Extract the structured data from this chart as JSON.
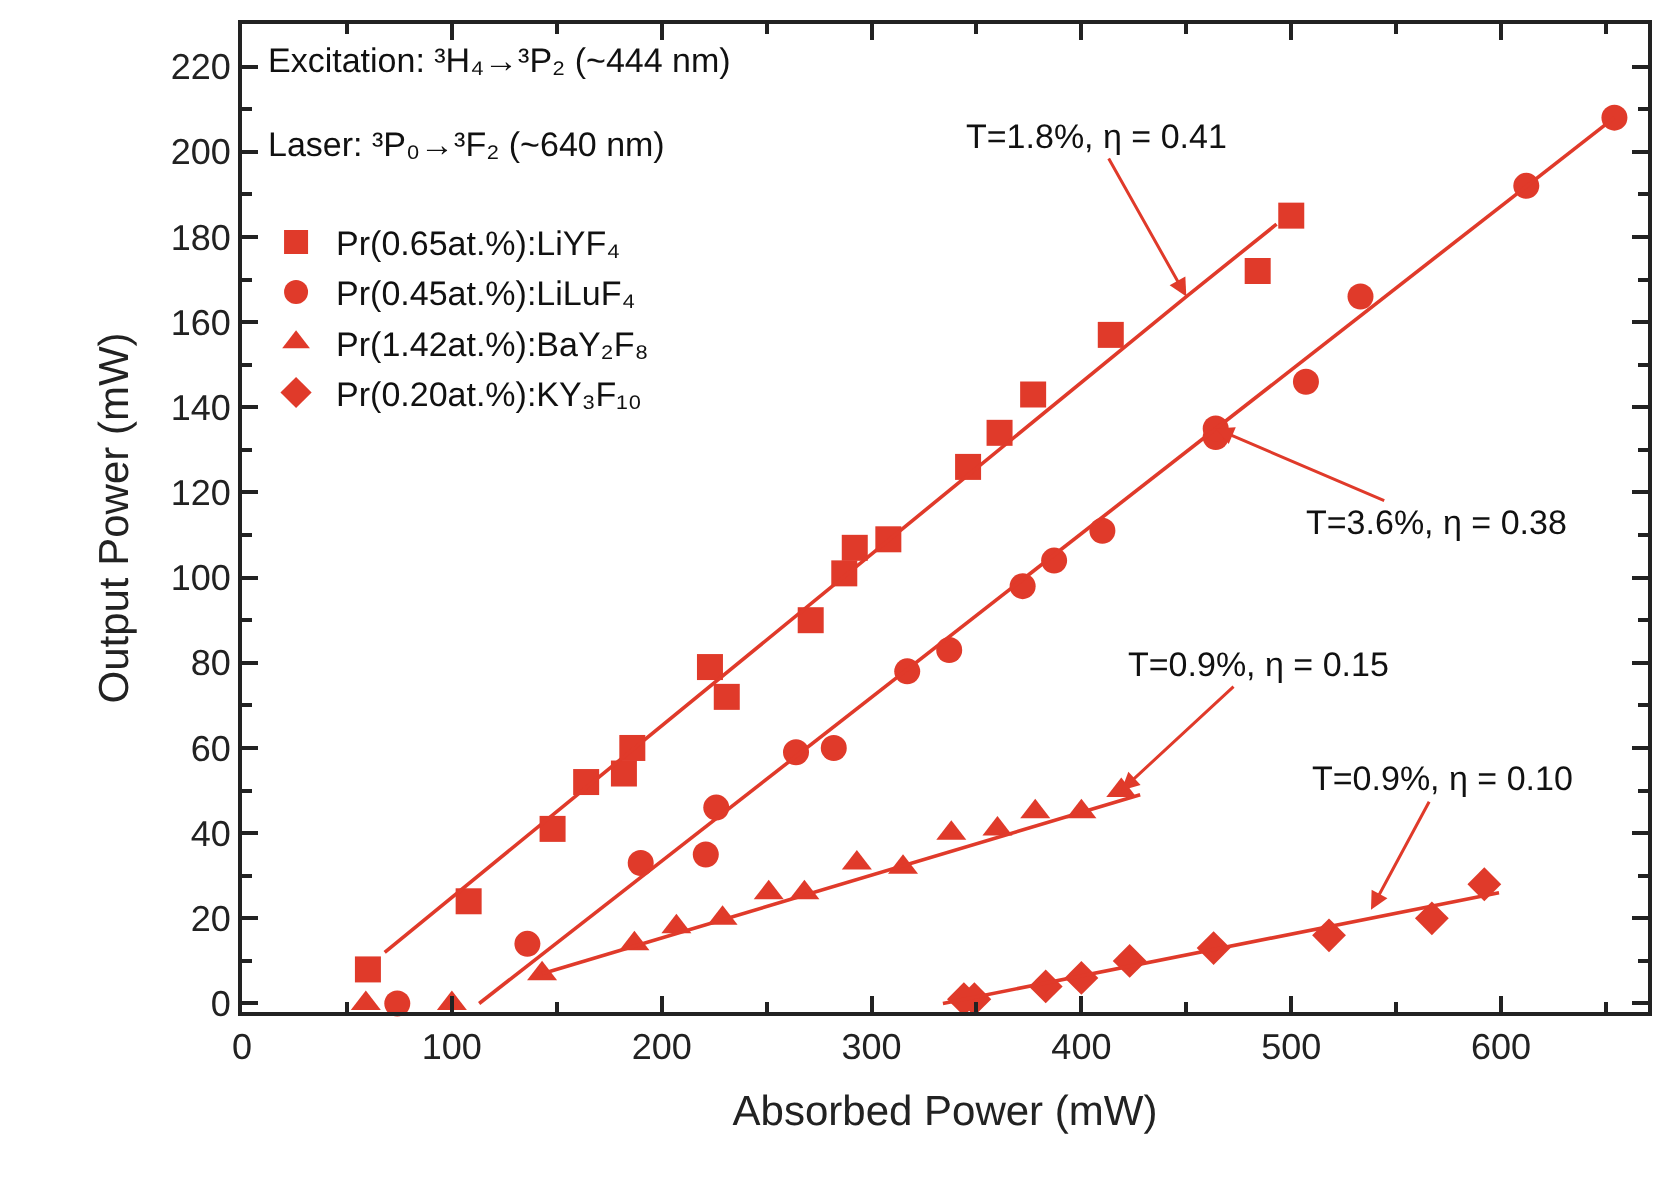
{
  "chart_data": {
    "type": "scatter",
    "xlabel": "Absorbed Power (mW)",
    "ylabel": "Output Power (mW)",
    "xlim": [
      0,
      670
    ],
    "ylim": [
      -2,
      230
    ],
    "xticks": [
      0,
      100,
      200,
      300,
      400,
      500,
      600
    ],
    "yticks": [
      0,
      20,
      40,
      60,
      80,
      100,
      120,
      140,
      160,
      180,
      200,
      220
    ],
    "legend": "top left",
    "series": [
      {
        "name": "Pr(0.65at.%):LiYF₄",
        "color": "#e03a2a",
        "marker": "square",
        "x": [
          60,
          108,
          148,
          164,
          182,
          186,
          223,
          231,
          271,
          287,
          292,
          308,
          346,
          361,
          377,
          414,
          484,
          500
        ],
        "values": [
          8,
          24,
          41,
          52,
          54,
          60,
          79,
          72,
          90,
          101,
          107,
          109,
          126,
          134,
          143,
          157,
          172,
          185
        ]
      },
      {
        "name": "Pr(0.45at.%):LiLuF₄",
        "color": "#e03a2a",
        "marker": "circle",
        "x": [
          74,
          136,
          190,
          221,
          226,
          264,
          282,
          317,
          337,
          372,
          387,
          410,
          464,
          464,
          507,
          533,
          612,
          654
        ],
        "values": [
          0,
          14,
          33,
          35,
          46,
          59,
          60,
          78,
          83,
          98,
          104,
          111,
          133,
          135,
          146,
          166,
          192,
          208
        ]
      },
      {
        "name": "Pr(1.42at.%):BaY₂F₈",
        "color": "#e03a2a",
        "marker": "triangle",
        "x": [
          59,
          100,
          143,
          187,
          207,
          229,
          251,
          268,
          293,
          315,
          338,
          360,
          378,
          400,
          419
        ],
        "values": [
          0,
          0,
          7,
          14,
          18,
          20,
          26,
          26,
          33,
          32,
          40,
          41,
          45,
          45,
          50
        ]
      },
      {
        "name": "Pr(0.20at.%):KY₃F₁₀",
        "color": "#e03a2a",
        "marker": "diamond",
        "x": [
          344,
          349,
          383,
          400,
          423,
          463,
          518,
          567,
          592
        ],
        "values": [
          1,
          1,
          4,
          6,
          10,
          13,
          16,
          20,
          28
        ]
      },
      {
        "type": "line",
        "color": "#e03a2a",
        "marker": "none",
        "x": [
          68,
          450,
          493
        ],
        "values": [
          12,
          166,
          183
        ]
      },
      {
        "type": "line",
        "color": "#e03a2a",
        "marker": "none",
        "x": [
          113,
          654
        ],
        "values": [
          0,
          208
        ]
      },
      {
        "type": "line",
        "color": "#e03a2a",
        "marker": "none",
        "x": [
          143,
          428
        ],
        "values": [
          7,
          49
        ]
      },
      {
        "type": "line",
        "color": "#e03a2a",
        "marker": "none",
        "x": [
          334,
          599
        ],
        "values": [
          0,
          26
        ]
      }
    ],
    "annotations": [
      "Excitation: ³H₄→³P₂ (~444 nm)",
      "Laser: ³P₀→³F₂ (~640 nm)",
      {
        "text": "T=1.8%, η = 0.41",
        "x": 450,
        "y": 166
      },
      {
        "text": "T=3.6%, η = 0.38",
        "x": 464,
        "y": 135
      },
      {
        "text": "T=0.9%, η = 0.15",
        "x": 419,
        "y": 50
      },
      {
        "text": "T=0.9%, η = 0.10",
        "x": 538,
        "y": 22
      }
    ]
  }
}
